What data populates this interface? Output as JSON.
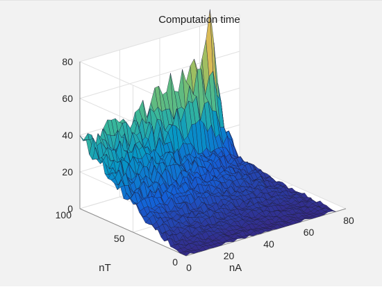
{
  "chart_data": {
    "type": "surface",
    "title": "Computation time",
    "xlabel": "nA",
    "ylabel": "nT",
    "zlabel": "",
    "xlim": [
      0,
      80
    ],
    "ylim": [
      0,
      100
    ],
    "zlim": [
      0,
      80
    ],
    "xticks": [
      "0",
      "20",
      "40",
      "60",
      "80"
    ],
    "yticks": [
      "0",
      "50",
      "100"
    ],
    "zticks": [
      "0",
      "20",
      "40",
      "60",
      "80"
    ],
    "grid": true,
    "colormap": "parula",
    "surface": {
      "nA": [
        0,
        10,
        20,
        30,
        40,
        50,
        60,
        70,
        75
      ],
      "nT": [
        0,
        12.5,
        25,
        37.5,
        50,
        62.5,
        75,
        87.5,
        100
      ],
      "time_rows_by_nT": [
        [
          0,
          0,
          0,
          0,
          0,
          0,
          0,
          0,
          0
        ],
        [
          2,
          2,
          2,
          2,
          1,
          1,
          1,
          1,
          1
        ],
        [
          5,
          5,
          4,
          4,
          3,
          3,
          2,
          2,
          1
        ],
        [
          9,
          8,
          8,
          7,
          6,
          5,
          4,
          3,
          2
        ],
        [
          14,
          13,
          12,
          11,
          9,
          8,
          6,
          4,
          2
        ],
        [
          20,
          18,
          17,
          15,
          13,
          11,
          9,
          6,
          3
        ],
        [
          26,
          24,
          22,
          20,
          17,
          14,
          11,
          8,
          4
        ],
        [
          32,
          30,
          28,
          26,
          22,
          18,
          14,
          10,
          5
        ],
        [
          38,
          36,
          40,
          44,
          47,
          52,
          62,
          30,
          14
        ]
      ],
      "peak": {
        "nA": 66,
        "nT": 100,
        "value": 84
      }
    }
  }
}
